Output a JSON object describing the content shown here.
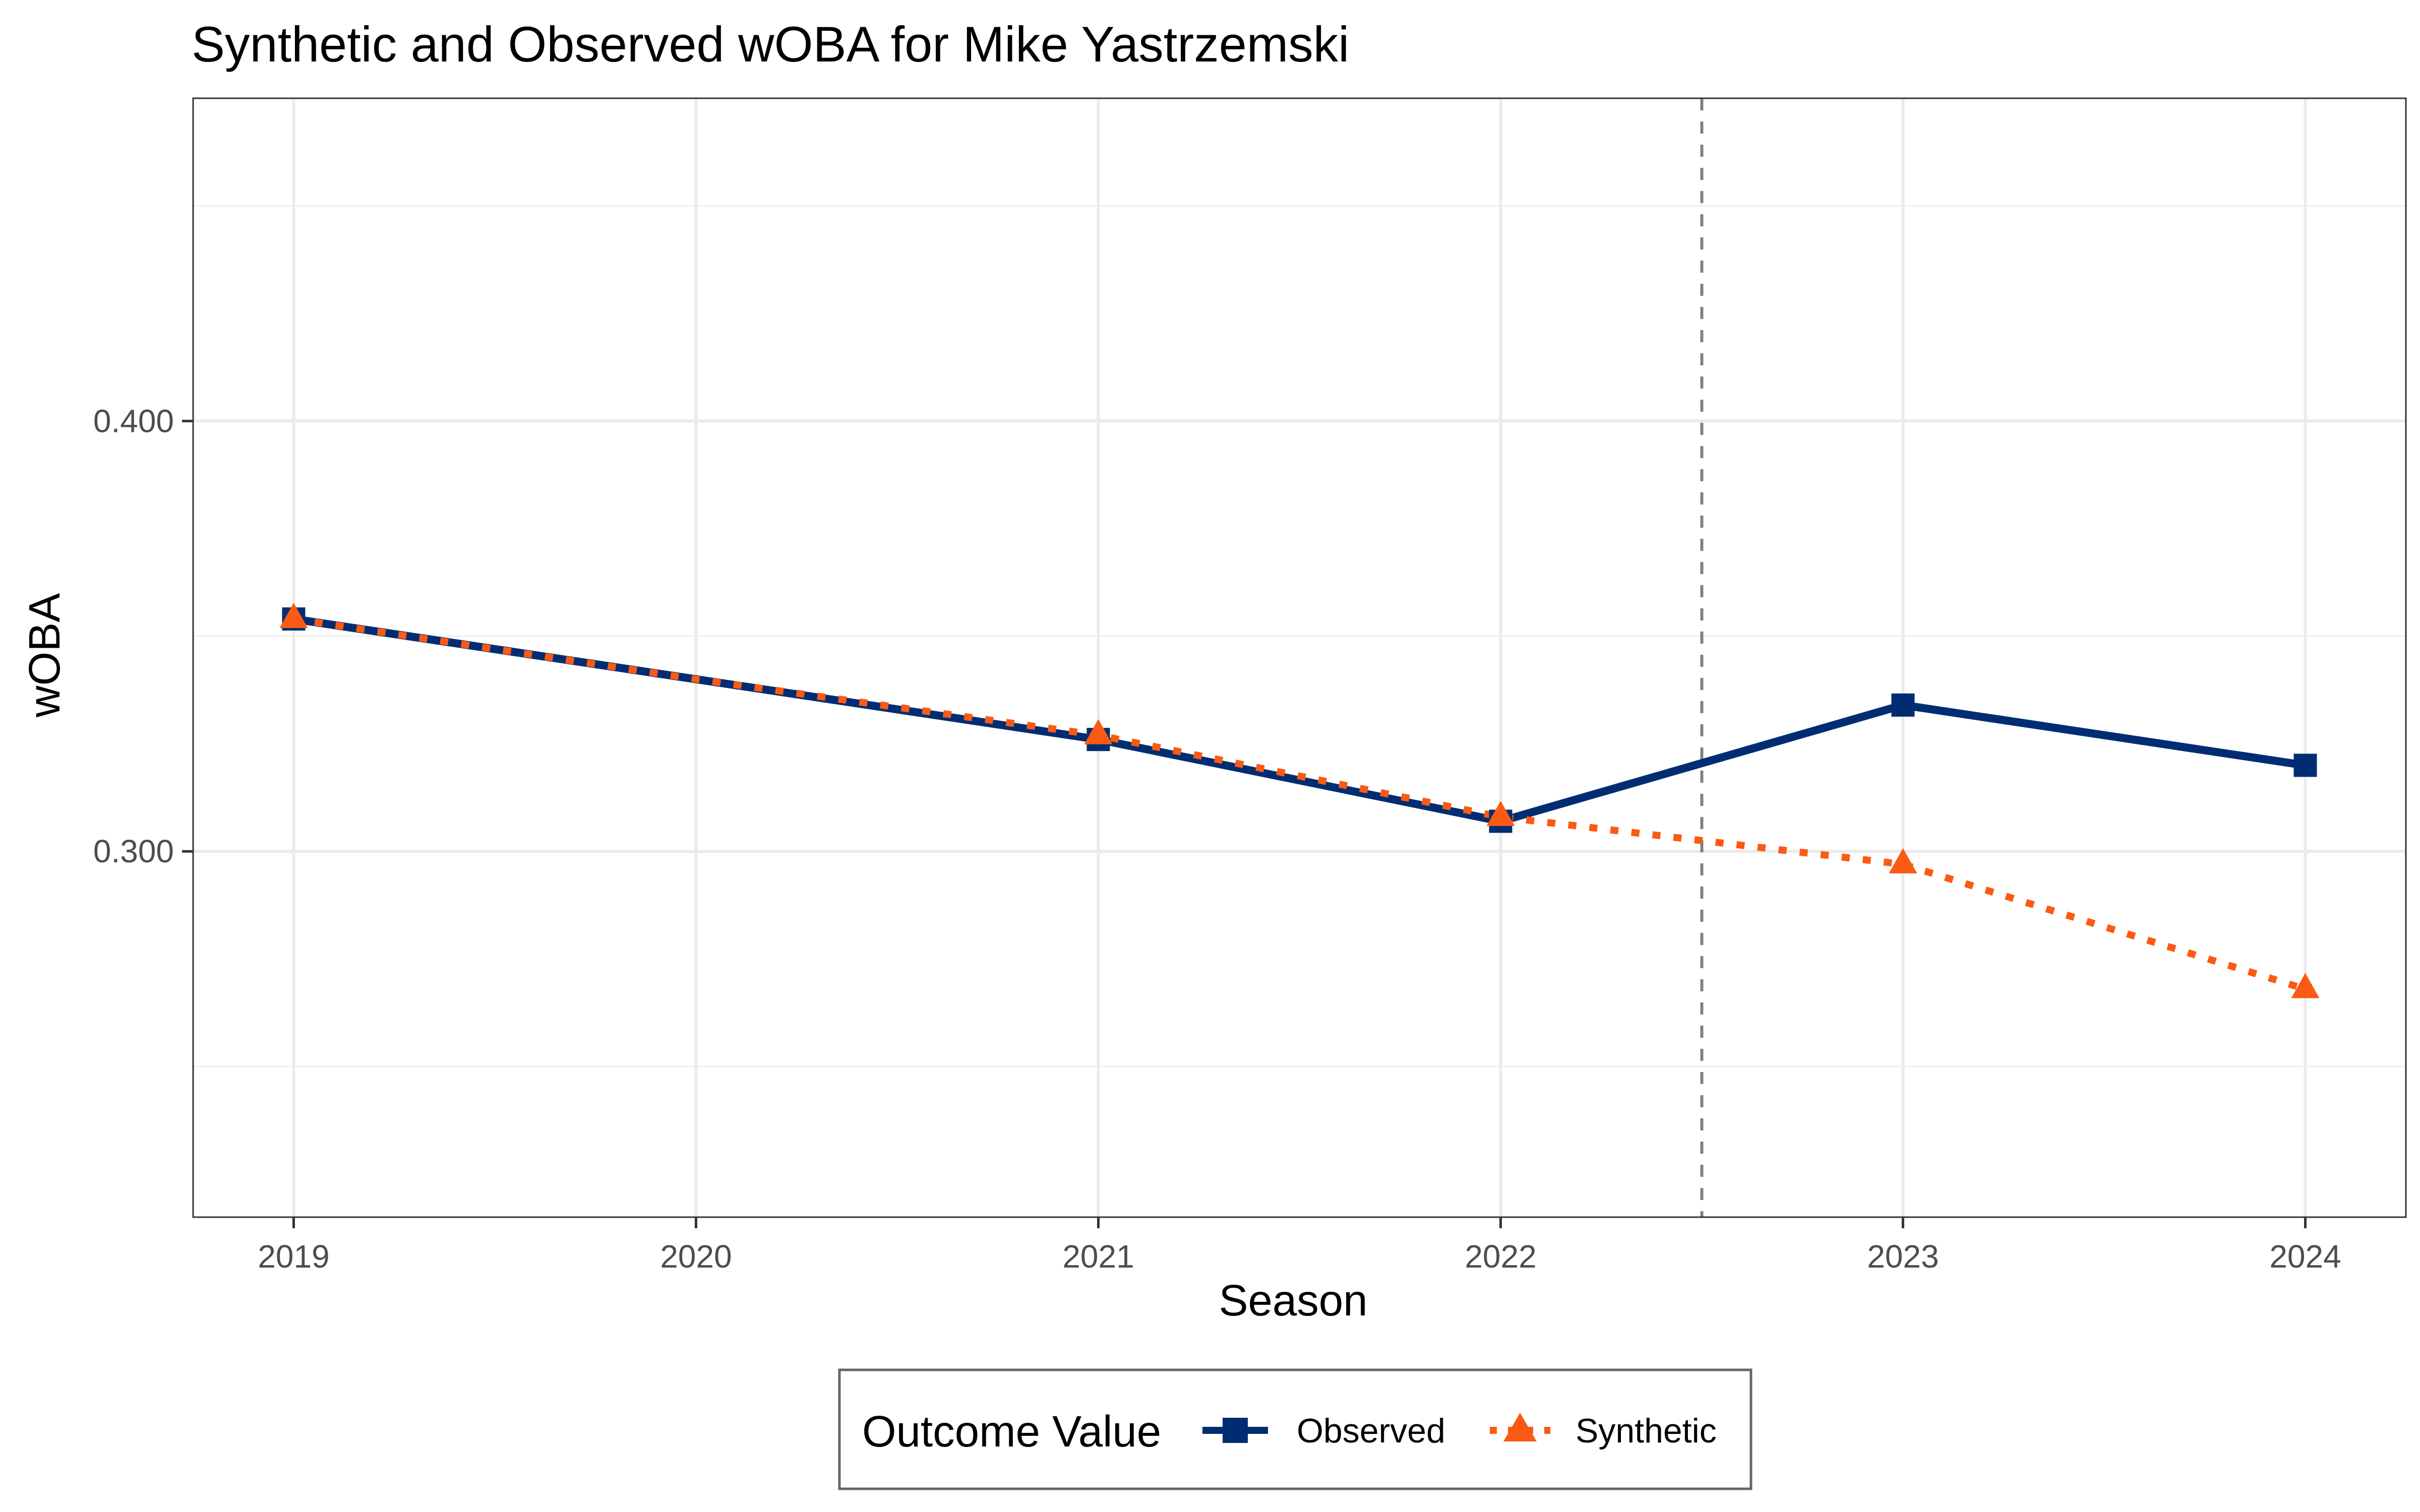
{
  "chart_data": {
    "type": "line",
    "title": "Synthetic and Observed wOBA for Mike Yastrzemski",
    "xlabel": "Season",
    "ylabel": "wOBA",
    "x": [
      2019,
      2020,
      2021,
      2022,
      2023,
      2024
    ],
    "x_tick_labels": [
      "2019",
      "2020",
      "2021",
      "2022",
      "2023",
      "2024"
    ],
    "y_tick_labels": [
      "0.300",
      "0.400"
    ],
    "y_ticks": [
      0.3,
      0.4
    ],
    "xlim": [
      2018.75,
      2024.25
    ],
    "ylim": [
      0.215,
      0.475
    ],
    "grid": true,
    "intervention_x": 2022.5,
    "series": [
      {
        "name": "Observed",
        "x": [
          2019,
          2020,
          2021,
          2022,
          2023,
          2024
        ],
        "values": [
          0.354,
          0.34,
          0.326,
          0.307,
          0.334,
          0.32
        ],
        "marker_x": [
          2019,
          2021,
          2022,
          2023,
          2024
        ],
        "marker_values": [
          0.354,
          0.326,
          0.307,
          0.334,
          0.32
        ],
        "color": "#002d72",
        "line_style": "solid",
        "marker": "square"
      },
      {
        "name": "Synthetic",
        "x": [
          2019,
          2020,
          2021,
          2022,
          2023,
          2024
        ],
        "values": [
          0.354,
          0.34,
          0.327,
          0.308,
          0.297,
          0.268
        ],
        "marker_x": [
          2019,
          2021,
          2022,
          2023,
          2024
        ],
        "marker_values": [
          0.354,
          0.327,
          0.308,
          0.297,
          0.268
        ],
        "color": "#fa5a14",
        "line_style": "dotted",
        "marker": "triangle"
      }
    ],
    "legend": {
      "title": "Outcome Value",
      "position": "bottom",
      "items": [
        "Observed",
        "Synthetic"
      ]
    }
  }
}
